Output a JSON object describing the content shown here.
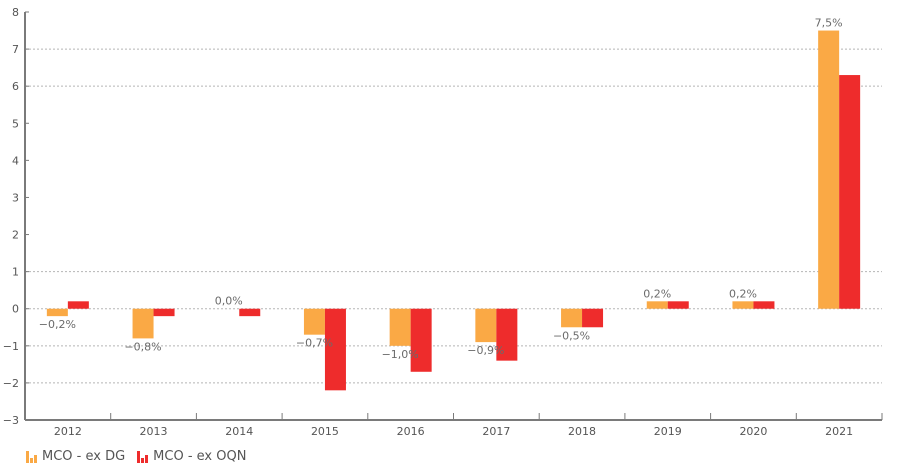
{
  "chart_data": {
    "type": "bar",
    "title": "",
    "xlabel": "",
    "ylabel": "",
    "categories": [
      "2012",
      "2013",
      "2014",
      "2015",
      "2016",
      "2017",
      "2018",
      "2019",
      "2020",
      "2021"
    ],
    "series": [
      {
        "name": "MCO - ex DG",
        "color": "#FAA945",
        "values": [
          -0.2,
          -0.8,
          0.0,
          -0.7,
          -1.0,
          -0.9,
          -0.5,
          0.2,
          0.2,
          7.5
        ],
        "data_labels": [
          "−0,2%",
          "−0,8%",
          "0,0%",
          "−0,7%",
          "−1,0%",
          "−0,9%",
          "−0,5%",
          "0,2%",
          "0,2%",
          "7,5%"
        ]
      },
      {
        "name": "MCO - ex OQN",
        "color": "#EE2C2C",
        "values": [
          0.2,
          -0.2,
          -0.2,
          -2.2,
          -1.7,
          -1.4,
          -0.5,
          0.2,
          0.2,
          6.3
        ]
      }
    ],
    "ylim": [
      -3,
      8
    ],
    "yticks": [
      8,
      7,
      6,
      5,
      4,
      3,
      2,
      1,
      0,
      -1,
      -2,
      -3
    ],
    "ytick_labels": [
      "8",
      "7",
      "6",
      "5",
      "4",
      "3",
      "2",
      "1",
      "0",
      "−1",
      "−2",
      "−3"
    ],
    "gridlines": [
      7,
      6,
      1,
      0,
      -1,
      -2
    ],
    "grid": true,
    "legend_position": "bottom-left"
  },
  "legend": {
    "items": [
      {
        "label": "MCO - ex DG",
        "color": "#FAA945"
      },
      {
        "label": "MCO - ex OQN",
        "color": "#EE2C2C"
      }
    ]
  }
}
